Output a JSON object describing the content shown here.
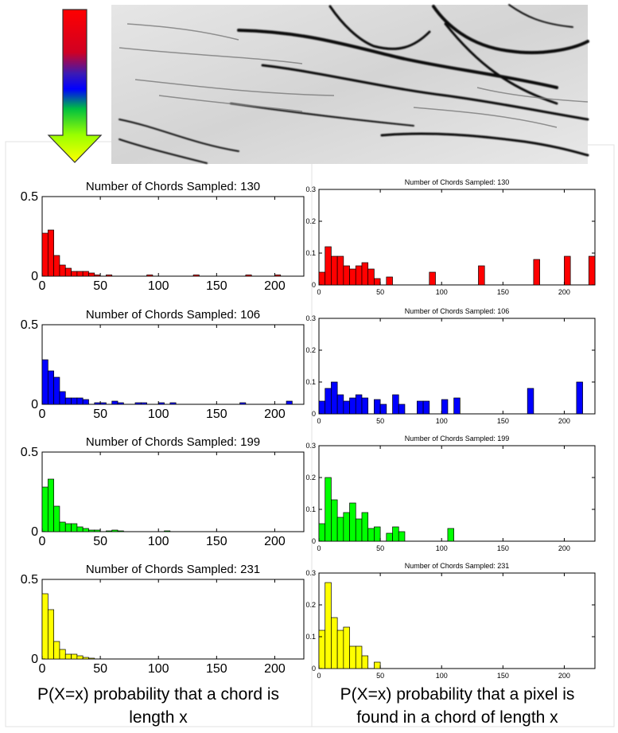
{
  "colors": {
    "gradient": [
      "#ff0000",
      "#cc0022",
      "#3a1ab5",
      "#0000ff",
      "#00c040",
      "#99ff00",
      "#ffff00"
    ],
    "series": [
      "#ff0000",
      "#0000ff",
      "#00ff00",
      "#ffff00"
    ]
  },
  "captions": {
    "left": [
      "P(X=x)  probability that a chord is",
      "length x"
    ],
    "right": [
      "P(X=x) probability that a pixel is",
      "found in a chord of length x"
    ]
  },
  "chart_data": [
    {
      "type": "bar",
      "title": "Number of Chords Sampled: 130",
      "color": "#ff0000",
      "xlim": [
        0,
        225
      ],
      "ylim": [
        0,
        0.5
      ],
      "xticks": [
        0,
        50,
        100,
        150,
        200
      ],
      "yticks": [
        0,
        0.5
      ],
      "x": [
        2.5,
        7.5,
        12.5,
        17.5,
        22.5,
        27.5,
        32.5,
        37.5,
        42.5,
        47.5,
        57.5,
        92.5,
        132.5,
        177.5,
        202.5
      ],
      "values": [
        0.27,
        0.29,
        0.13,
        0.07,
        0.05,
        0.03,
        0.03,
        0.03,
        0.02,
        0.008,
        0.008,
        0.008,
        0.008,
        0.008,
        0.008
      ]
    },
    {
      "type": "bar",
      "title": "Number of Chords Sampled: 130",
      "color": "#ff0000",
      "xlim": [
        0,
        225
      ],
      "ylim": [
        0,
        0.3
      ],
      "xticks": [
        0,
        50,
        100,
        150,
        200
      ],
      "yticks": [
        0,
        0.1,
        0.2,
        0.3
      ],
      "x": [
        2.5,
        7.5,
        12.5,
        17.5,
        22.5,
        27.5,
        32.5,
        37.5,
        42.5,
        47.5,
        57.5,
        92.5,
        132.5,
        177.5,
        202.5,
        222.5
      ],
      "values": [
        0.04,
        0.12,
        0.09,
        0.09,
        0.06,
        0.05,
        0.06,
        0.07,
        0.05,
        0.02,
        0.025,
        0.04,
        0.06,
        0.08,
        0.09,
        0.09
      ]
    },
    {
      "type": "bar",
      "title": "Number of Chords Sampled: 106",
      "color": "#0000ff",
      "xlim": [
        0,
        225
      ],
      "ylim": [
        0,
        0.5
      ],
      "xticks": [
        0,
        50,
        100,
        150,
        200
      ],
      "yticks": [
        0,
        0.5
      ],
      "x": [
        2.5,
        7.5,
        12.5,
        17.5,
        22.5,
        27.5,
        32.5,
        37.5,
        47.5,
        52.5,
        62.5,
        67.5,
        82.5,
        87.5,
        102.5,
        112.5,
        172.5,
        212.5
      ],
      "values": [
        0.28,
        0.21,
        0.17,
        0.08,
        0.04,
        0.04,
        0.04,
        0.03,
        0.01,
        0.01,
        0.02,
        0.01,
        0.01,
        0.01,
        0.01,
        0.01,
        0.01,
        0.02
      ]
    },
    {
      "type": "bar",
      "title": "Number of Chords Sampled: 106",
      "color": "#0000ff",
      "xlim": [
        0,
        225
      ],
      "ylim": [
        0,
        0.3
      ],
      "xticks": [
        0,
        50,
        100,
        150,
        200
      ],
      "yticks": [
        0,
        0.1,
        0.2,
        0.3
      ],
      "x": [
        2.5,
        7.5,
        12.5,
        17.5,
        22.5,
        27.5,
        32.5,
        37.5,
        47.5,
        52.5,
        62.5,
        67.5,
        82.5,
        87.5,
        102.5,
        112.5,
        172.5,
        212.5
      ],
      "values": [
        0.04,
        0.08,
        0.1,
        0.06,
        0.04,
        0.05,
        0.06,
        0.05,
        0.045,
        0.03,
        0.06,
        0.03,
        0.04,
        0.04,
        0.045,
        0.05,
        0.08,
        0.1
      ]
    },
    {
      "type": "bar",
      "title": "Number of Chords Sampled: 199",
      "color": "#00ff00",
      "xlim": [
        0,
        225
      ],
      "ylim": [
        0,
        0.5
      ],
      "xticks": [
        0,
        50,
        100,
        150,
        200
      ],
      "yticks": [
        0,
        0.5
      ],
      "x": [
        2.5,
        7.5,
        12.5,
        17.5,
        22.5,
        27.5,
        32.5,
        37.5,
        42.5,
        47.5,
        57.5,
        62.5,
        67.5,
        107.5
      ],
      "values": [
        0.28,
        0.33,
        0.16,
        0.06,
        0.05,
        0.05,
        0.03,
        0.02,
        0.01,
        0.01,
        0.005,
        0.01,
        0.005,
        0.005
      ]
    },
    {
      "type": "bar",
      "title": "Number of Chords Sampled: 199",
      "color": "#00ff00",
      "xlim": [
        0,
        225
      ],
      "ylim": [
        0,
        0.3
      ],
      "xticks": [
        0,
        50,
        100,
        150,
        200
      ],
      "yticks": [
        0,
        0.1,
        0.2,
        0.3
      ],
      "x": [
        2.5,
        7.5,
        12.5,
        17.5,
        22.5,
        27.5,
        32.5,
        37.5,
        42.5,
        47.5,
        57.5,
        62.5,
        67.5,
        107.5
      ],
      "values": [
        0.055,
        0.2,
        0.13,
        0.075,
        0.09,
        0.12,
        0.07,
        0.09,
        0.04,
        0.045,
        0.025,
        0.045,
        0.03,
        0.04
      ]
    },
    {
      "type": "bar",
      "title": "Number of Chords Sampled: 231",
      "color": "#ffff00",
      "xlim": [
        0,
        225
      ],
      "ylim": [
        0,
        0.5
      ],
      "xticks": [
        0,
        50,
        100,
        150,
        200
      ],
      "yticks": [
        0,
        0.5
      ],
      "x": [
        2.5,
        7.5,
        12.5,
        17.5,
        22.5,
        27.5,
        32.5,
        37.5,
        42.5
      ],
      "values": [
        0.41,
        0.31,
        0.11,
        0.06,
        0.03,
        0.03,
        0.02,
        0.01,
        0.005
      ]
    },
    {
      "type": "bar",
      "title": "Number of Chords Sampled: 231",
      "color": "#ffff00",
      "xlim": [
        0,
        225
      ],
      "ylim": [
        0,
        0.3
      ],
      "xticks": [
        0,
        50,
        100,
        150,
        200
      ],
      "yticks": [
        0,
        0.1,
        0.2,
        0.3
      ],
      "x": [
        2.5,
        7.5,
        12.5,
        17.5,
        22.5,
        27.5,
        32.5,
        37.5,
        47.5
      ],
      "values": [
        0.12,
        0.27,
        0.16,
        0.12,
        0.13,
        0.07,
        0.07,
        0.04,
        0.02
      ]
    }
  ]
}
